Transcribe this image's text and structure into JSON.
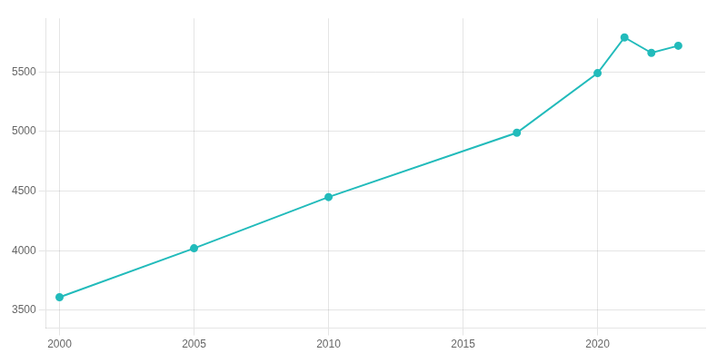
{
  "chart_data": {
    "type": "line",
    "x": [
      2000,
      2005,
      2010,
      2017,
      2020,
      2021,
      2022,
      2023
    ],
    "values": [
      3610,
      4020,
      4450,
      4990,
      5490,
      5790,
      5660,
      5720
    ],
    "color": "#22BBBB",
    "marker": "circle",
    "xlim": [
      1999.5,
      2024
    ],
    "ylim": [
      3350,
      5950
    ],
    "xticks": [
      2000,
      2005,
      2010,
      2015,
      2020
    ],
    "yticks": [
      3500,
      4000,
      4500,
      5000,
      5500
    ],
    "grid": true
  }
}
